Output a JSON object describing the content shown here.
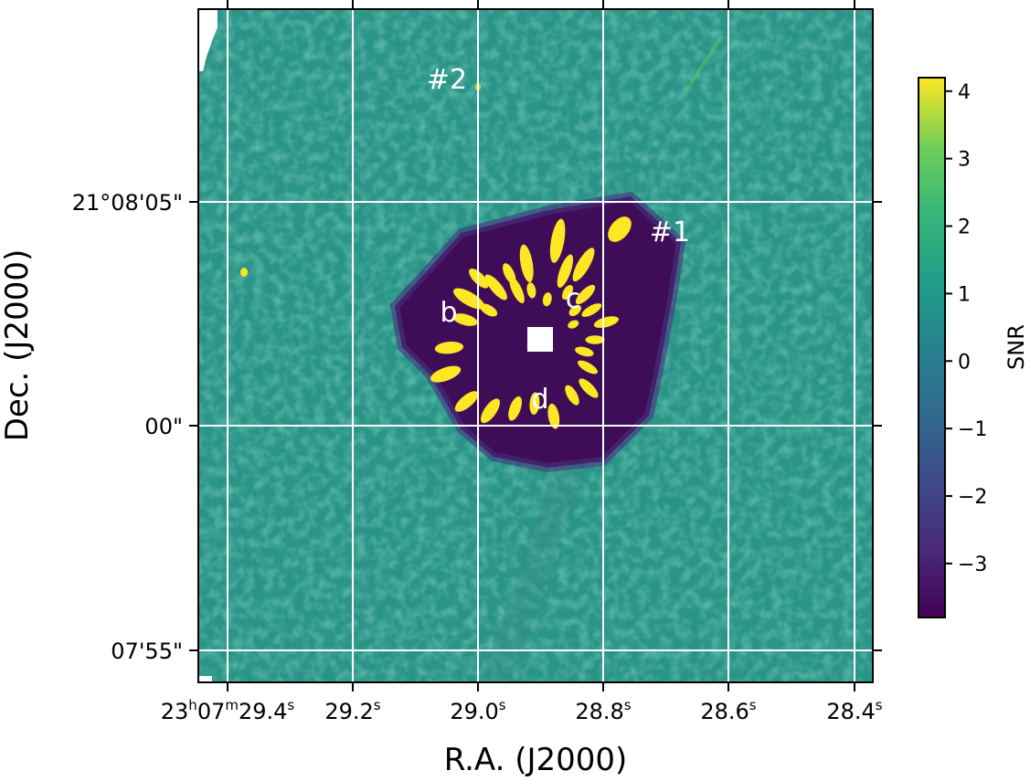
{
  "chart_data": {
    "type": "heatmap",
    "title": "",
    "xlabel": "R.A. (J2000)",
    "ylabel": "Dec. (J2000)",
    "x_ticks": [
      {
        "sup1": "h",
        "sup2": "m",
        "sup3": "s",
        "parts": [
          "23",
          "07",
          "29.4"
        ]
      },
      {
        "parts": [
          "29.2"
        ],
        "sup": "s"
      },
      {
        "parts": [
          "29.0"
        ],
        "sup": "s"
      },
      {
        "parts": [
          "28.8"
        ],
        "sup": "s"
      },
      {
        "parts": [
          "28.6"
        ],
        "sup": "s"
      },
      {
        "parts": [
          "28.4"
        ],
        "sup": "s"
      }
    ],
    "x_tick_labels": [
      "23h07m29.4s",
      "29.2s",
      "29.0s",
      "28.8s",
      "28.6s",
      "28.4s"
    ],
    "y_tick_labels": [
      "21°08'05\"",
      "00\"",
      "07'55\""
    ],
    "grid": true,
    "colorbar": {
      "label": "SNR",
      "ticks": [
        4,
        3,
        2,
        1,
        0,
        -1,
        -2,
        -3
      ],
      "tick_labels": [
        "4",
        "3",
        "2",
        "1",
        "0",
        "−1",
        "−2",
        "−3"
      ],
      "range": [
        -3.8,
        4.2
      ],
      "colormap": "viridis"
    },
    "annotations": [
      {
        "text": "#1"
      },
      {
        "text": "#2"
      },
      {
        "text": "b"
      },
      {
        "text": "c"
      },
      {
        "text": "d"
      }
    ]
  },
  "colors": {
    "background_field": "#29948a",
    "low": "#440154",
    "high": "#fde725",
    "grid": "#ffffff"
  }
}
